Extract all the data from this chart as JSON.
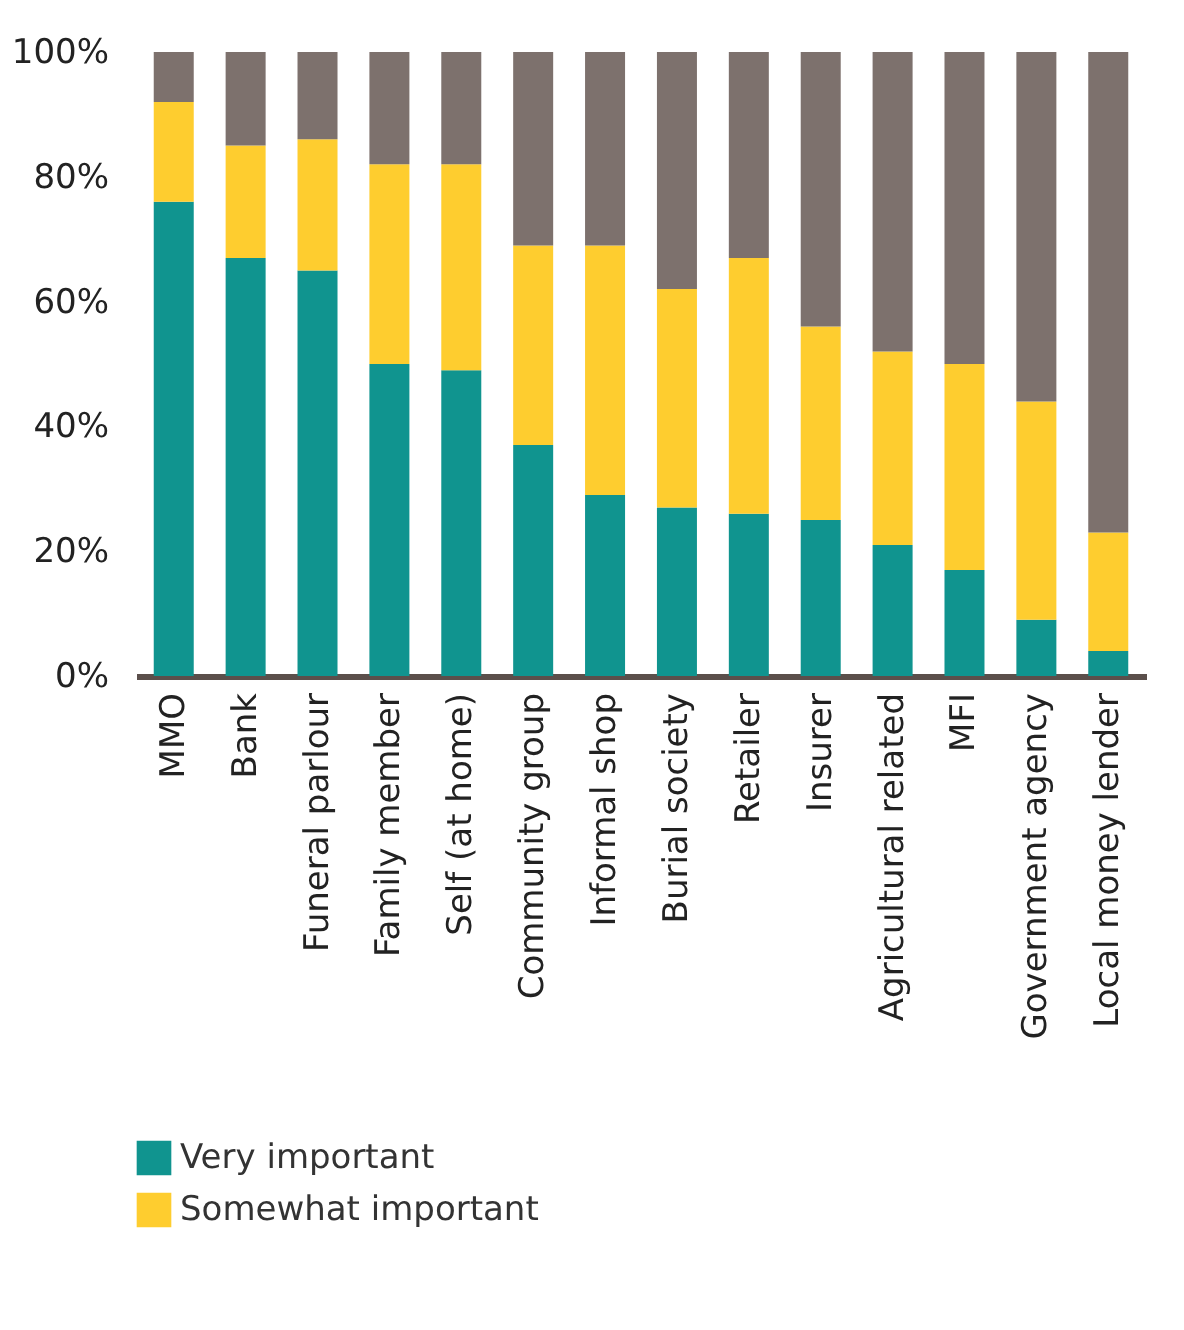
{
  "chart_data": {
    "type": "bar",
    "stacked": true,
    "categories": [
      "MMO",
      "Bank",
      "Funeral parlour",
      "Family member",
      "Self (at home)",
      "Community group",
      "Informal shop",
      "Burial society",
      "Retailer",
      "Insurer",
      "Agricultural related",
      "MFI",
      "Government agency",
      "Local money lender"
    ],
    "series": [
      {
        "name": "Very important",
        "color": "#10948f",
        "values": [
          76,
          67,
          65,
          50,
          49,
          37,
          29,
          27,
          26,
          25,
          21,
          17,
          9,
          4
        ]
      },
      {
        "name": "Somewhat important",
        "color": "#fecd2f",
        "values": [
          16,
          18,
          21,
          32,
          33,
          32,
          40,
          35,
          41,
          31,
          31,
          33,
          35,
          19
        ]
      },
      {
        "color": "#7d716d",
        "values": [
          8,
          15,
          14,
          18,
          18,
          31,
          31,
          38,
          33,
          44,
          48,
          50,
          56,
          77
        ]
      }
    ],
    "ylim": [
      0,
      100
    ],
    "yticks": [
      {
        "value": 0,
        "label": "0%"
      },
      {
        "value": 20,
        "label": "20%"
      },
      {
        "value": 40,
        "label": "40%"
      },
      {
        "value": 60,
        "label": "60%"
      },
      {
        "value": 80,
        "label": "80%"
      },
      {
        "value": 100,
        "label": "100%"
      }
    ],
    "grid": false,
    "legend": "bottom left"
  }
}
